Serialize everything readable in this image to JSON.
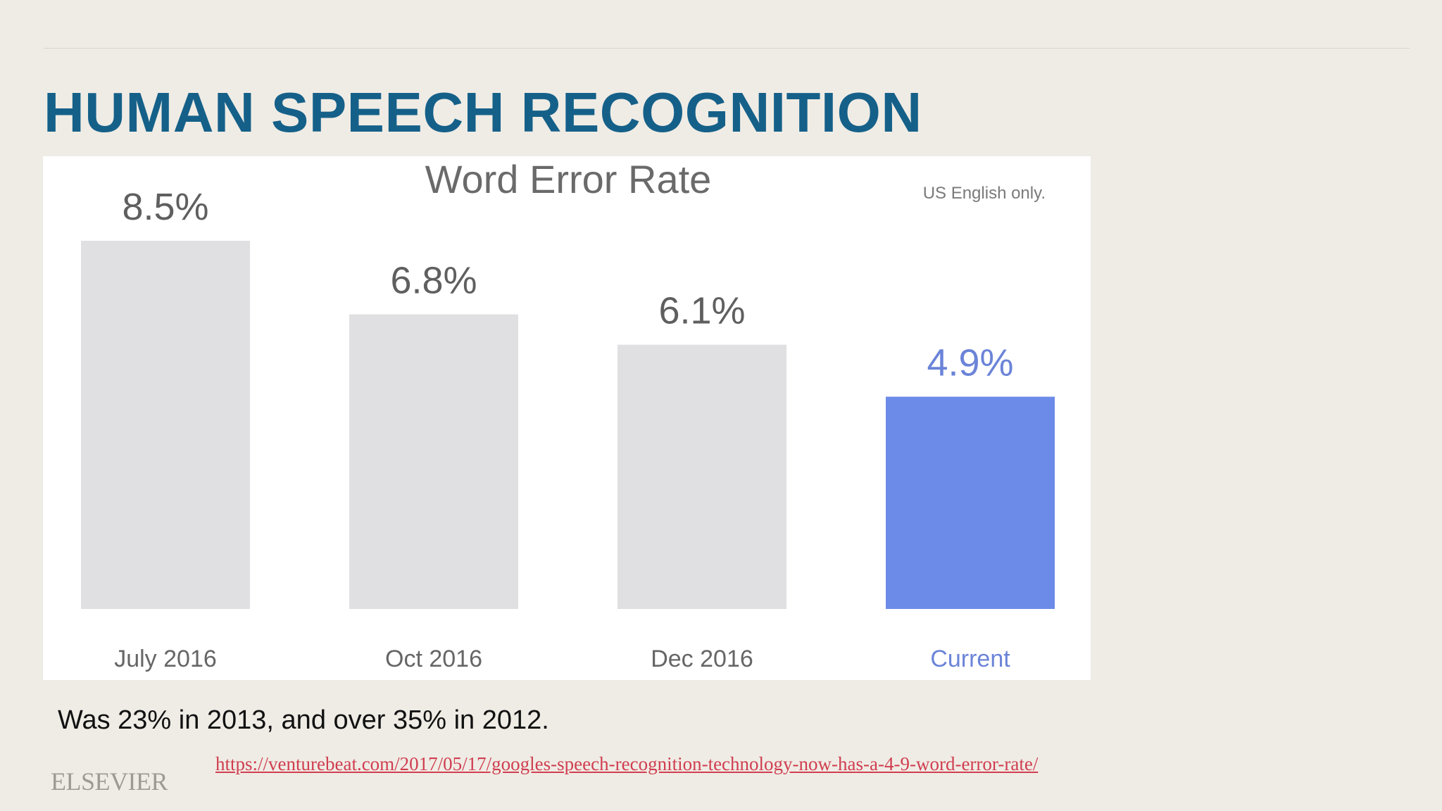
{
  "slide": {
    "title": "HUMAN SPEECH RECOGNITION",
    "caption": "Was 23% in 2013, and over 35% in 2012.",
    "source_link": "https://venturebeat.com/2017/05/17/googles-speech-recognition-technology-now-has-a-4-9-word-error-rate/",
    "logo_text": "ELSEVIER"
  },
  "colors": {
    "title": "#156089",
    "background": "#efece5",
    "bar_default": "#e0dfe1",
    "bar_highlight": "#6c8be9",
    "label_default": "#5f5f5f",
    "label_highlight": "#6b84d8",
    "link": "#d03e50"
  },
  "chart_data": {
    "type": "bar",
    "title": "Word Error Rate",
    "note": "US English only.",
    "categories": [
      "July 2016",
      "Oct 2016",
      "Dec 2016",
      "Current"
    ],
    "values": [
      8.5,
      6.8,
      6.1,
      4.9
    ],
    "value_labels": [
      "8.5%",
      "6.8%",
      "6.1%",
      "4.9%"
    ],
    "highlight_index": 3,
    "ylim": [
      0,
      8.5
    ],
    "xlabel": "",
    "ylabel": "",
    "grid": false,
    "legend": "none"
  }
}
